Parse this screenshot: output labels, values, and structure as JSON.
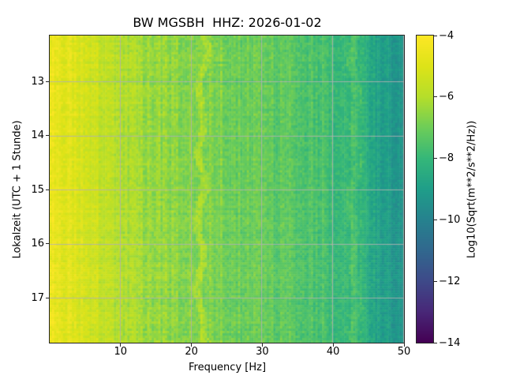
{
  "chart_data": {
    "type": "heatmap",
    "title": "BW MGSBH  HHZ: 2026-01-02",
    "xlabel": "Frequency [Hz]",
    "ylabel": "Lokalzeit (UTC + 1 Stunde)",
    "colorbar_label": "Log10(Sqrt(m**2/s**2/Hz))",
    "colormap": "viridis",
    "colormap_stops": [
      "#440154",
      "#482878",
      "#3e4a89",
      "#31688e",
      "#26828e",
      "#1f9e89",
      "#35b779",
      "#6dcd59",
      "#b5de2b",
      "#dde318",
      "#fde725"
    ],
    "x_range": [
      0,
      50
    ],
    "y_range": [
      12.15,
      17.83
    ],
    "x_ticks": [
      10,
      20,
      30,
      40,
      50
    ],
    "y_ticks": [
      13,
      14,
      15,
      16,
      17
    ],
    "value_range": [
      -14,
      -4
    ],
    "colorbar_ticks": [
      -4,
      -6,
      -8,
      -10,
      -12,
      -14
    ],
    "grid": true,
    "grid_color": "#b2b2b2",
    "frequency_profile": {
      "freq_hz": [
        0.3,
        1,
        2,
        4,
        6,
        8,
        10,
        13,
        16,
        20,
        22,
        25,
        28,
        31,
        34,
        37,
        39,
        41,
        43,
        45,
        47,
        50
      ],
      "mean_log_value": [
        -4.5,
        -4.6,
        -4.8,
        -5.1,
        -5.4,
        -5.7,
        -6.0,
        -6.3,
        -6.5,
        -6.7,
        -6.6,
        -6.9,
        -7.1,
        -7.2,
        -7.3,
        -7.5,
        -7.7,
        -8.0,
        -7.9,
        -8.5,
        -9.0,
        -9.6
      ]
    },
    "features": [
      {
        "name": "wiggly-spectral-line",
        "freq_hz": 21.7,
        "width_hz": 0.5,
        "delta": 0.55
      },
      {
        "name": "spectral-band",
        "freq_hz": 42.6,
        "width_hz": 0.6,
        "delta": 0.35
      }
    ],
    "noise_texture": 0.35
  }
}
